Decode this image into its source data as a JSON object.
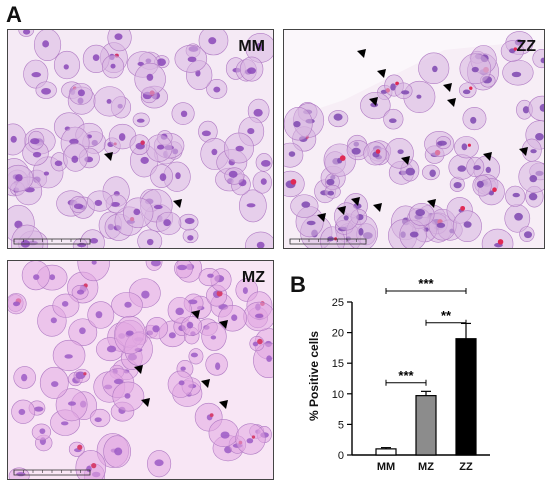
{
  "figure": {
    "panel_a_letter": "A",
    "panel_b_letter": "B"
  },
  "micrographs": [
    {
      "label": "MM",
      "base": "#f5eaf5",
      "cell": "#d9b6e2",
      "nucleus": "#8a48b8",
      "pink": "#d2346a"
    },
    {
      "label": "ZZ",
      "base": "#f7eef6",
      "cell": "#d7b4e0",
      "nucleus": "#7e46b0",
      "pink": "#e02a55"
    },
    {
      "label": "MZ",
      "base": "#f8e6f5",
      "cell": "#e2a8e2",
      "nucleus": "#9c5cc6",
      "pink": "#d6406e"
    }
  ],
  "chart_data": {
    "type": "bar",
    "categories": [
      "MM",
      "MZ",
      "ZZ"
    ],
    "values": [
      1.0,
      9.7,
      19.0
    ],
    "errors": [
      0.2,
      0.7,
      2.5
    ],
    "bar_colors": [
      "#ffffff",
      "#8c8c8c",
      "#000000"
    ],
    "ylabel": "% Positive cells",
    "ylim": [
      0,
      25
    ],
    "yticks": [
      "0",
      "5",
      "10",
      "15",
      "20",
      "25"
    ],
    "significance": [
      {
        "from": "MM",
        "to": "MZ",
        "label": "***"
      },
      {
        "from": "MZ",
        "to": "ZZ",
        "label": "**"
      },
      {
        "from": "MM",
        "to": "ZZ",
        "label": "***"
      }
    ]
  }
}
